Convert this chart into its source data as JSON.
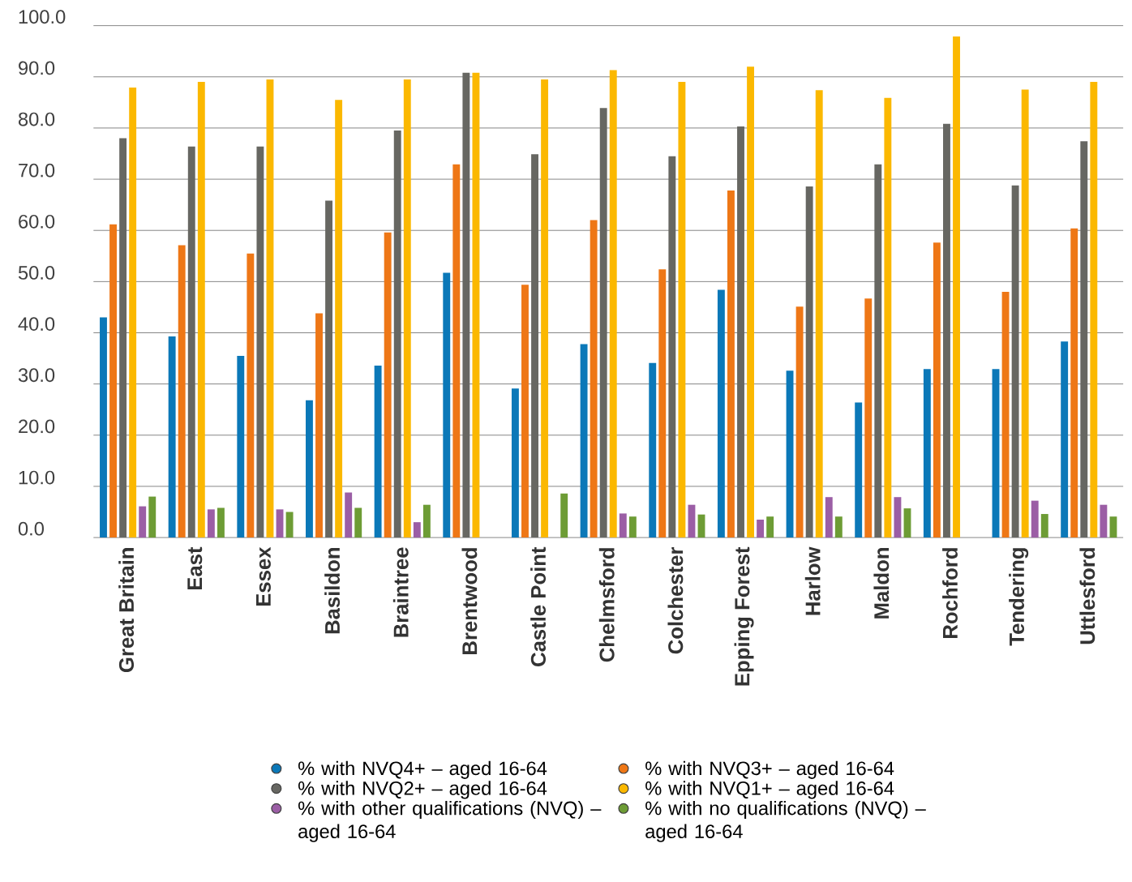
{
  "chart_data": {
    "type": "bar",
    "categories": [
      "Great Britain",
      "East",
      "Essex",
      "Basildon",
      "Braintree",
      "Brentwood",
      "Castle Point",
      "Chelmsford",
      "Colchester",
      "Epping Forest",
      "Harlow",
      "Maldon",
      "Rochford",
      "Tendering",
      "Uttlesford"
    ],
    "series": [
      {
        "name": "% with NVQ4+ – aged 16-64",
        "color": "#0b78b8",
        "values": [
          43.0,
          39.3,
          35.5,
          26.8,
          33.6,
          51.7,
          29.1,
          37.8,
          34.1,
          48.4,
          32.6,
          26.4,
          32.9,
          32.9,
          38.3
        ]
      },
      {
        "name": "% with NVQ3+ – aged 16-64",
        "color": "#ee7716",
        "values": [
          61.2,
          57.1,
          55.5,
          43.8,
          59.6,
          72.9,
          49.4,
          62.0,
          52.4,
          67.8,
          45.1,
          46.7,
          57.6,
          48.0,
          60.4
        ]
      },
      {
        "name": "% with NVQ2+ – aged 16-64",
        "color": "#676762",
        "values": [
          78.0,
          76.4,
          76.4,
          65.8,
          79.5,
          90.8,
          74.9,
          83.9,
          74.5,
          80.3,
          68.6,
          72.9,
          80.8,
          68.8,
          77.4
        ]
      },
      {
        "name": "% with NVQ1+ – aged 16-64",
        "color": "#fbb800",
        "values": [
          87.9,
          89.0,
          89.5,
          85.5,
          89.5,
          90.8,
          89.5,
          91.3,
          89.0,
          92.0,
          87.4,
          85.9,
          97.9,
          87.5,
          89.0
        ]
      },
      {
        "name": "% with other qualifications (NVQ) – aged 16-64",
        "color": "#9b5ea5",
        "values": [
          6.1,
          5.5,
          5.5,
          8.8,
          3.0,
          null,
          null,
          4.7,
          6.4,
          3.5,
          7.9,
          7.9,
          null,
          7.2,
          6.4
        ]
      },
      {
        "name": "% with no qualifications (NVQ) – aged 16-64",
        "color": "#6d9c35",
        "values": [
          8.0,
          5.8,
          5.0,
          5.8,
          6.4,
          null,
          8.6,
          4.1,
          4.5,
          4.1,
          4.1,
          5.7,
          null,
          4.6,
          4.1
        ]
      }
    ],
    "ylim": [
      0,
      100
    ],
    "yticks": [
      {
        "value": 0,
        "label": "0.0"
      },
      {
        "value": 10,
        "label": "10.0"
      },
      {
        "value": 20,
        "label": "20.0"
      },
      {
        "value": 30,
        "label": "30.0"
      },
      {
        "value": 40,
        "label": "40.0"
      },
      {
        "value": 50,
        "label": "50.0"
      },
      {
        "value": 60,
        "label": "60.0"
      },
      {
        "value": 70,
        "label": "70.0"
      },
      {
        "value": 80,
        "label": "80.0"
      },
      {
        "value": 90,
        "label": "90.0"
      },
      {
        "value": 100,
        "label": "100.0"
      }
    ],
    "grid": "y",
    "legend": "bottom"
  }
}
